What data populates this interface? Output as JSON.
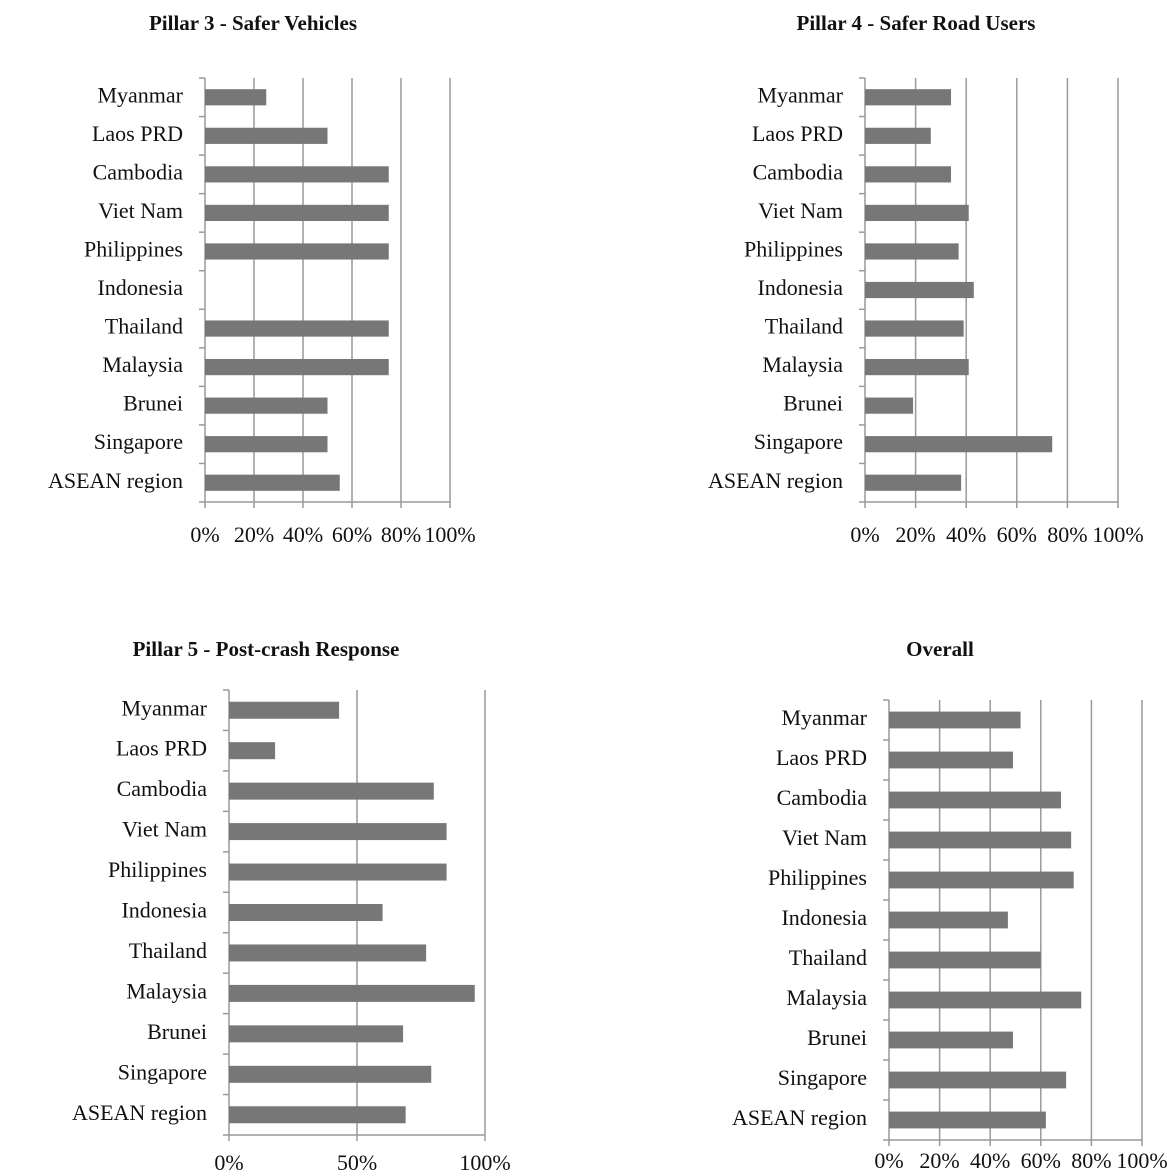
{
  "chart_data": [
    {
      "type": "bar",
      "orientation": "horizontal",
      "title": "Pillar 3 - Safer Vehicles",
      "categories": [
        "Myanmar",
        "Laos PRD",
        "Cambodia",
        "Viet Nam",
        "Philippines",
        "Indonesia",
        "Thailand",
        "Malaysia",
        "Brunei",
        "Singapore",
        "ASEAN region"
      ],
      "values": [
        25,
        50,
        75,
        75,
        75,
        0,
        75,
        75,
        50,
        50,
        55
      ],
      "color": "#777777",
      "xlim": [
        0,
        100
      ],
      "xticks": [
        {
          "value": 0,
          "label": "0%"
        },
        {
          "value": 20,
          "label": "20%"
        },
        {
          "value": 40,
          "label": "40%"
        },
        {
          "value": 60,
          "label": "60%"
        },
        {
          "value": 80,
          "label": "80%"
        },
        {
          "value": 100,
          "label": "100%"
        }
      ],
      "grid": true
    },
    {
      "type": "bar",
      "orientation": "horizontal",
      "title": "Pillar 4 - Safer Road Users",
      "categories": [
        "Myanmar",
        "Laos PRD",
        "Cambodia",
        "Viet Nam",
        "Philippines",
        "Indonesia",
        "Thailand",
        "Malaysia",
        "Brunei",
        "Singapore",
        "ASEAN region"
      ],
      "values": [
        34,
        26,
        34,
        41,
        37,
        43,
        39,
        41,
        19,
        74,
        38
      ],
      "color": "#777777",
      "xlim": [
        0,
        100
      ],
      "xticks": [
        {
          "value": 0,
          "label": "0%"
        },
        {
          "value": 20,
          "label": "20%"
        },
        {
          "value": 40,
          "label": "40%"
        },
        {
          "value": 60,
          "label": "60%"
        },
        {
          "value": 80,
          "label": "80%"
        },
        {
          "value": 100,
          "label": "100%"
        }
      ],
      "grid": true
    },
    {
      "type": "bar",
      "orientation": "horizontal",
      "title": "Pillar 5 - Post-crash Response",
      "categories": [
        "Myanmar",
        "Laos PRD",
        "Cambodia",
        "Viet Nam",
        "Philippines",
        "Indonesia",
        "Thailand",
        "Malaysia",
        "Brunei",
        "Singapore",
        "ASEAN region"
      ],
      "values": [
        43,
        18,
        80,
        85,
        85,
        60,
        77,
        96,
        68,
        79,
        69
      ],
      "color": "#777777",
      "xlim": [
        0,
        100
      ],
      "xticks": [
        {
          "value": 0,
          "label": "0%"
        },
        {
          "value": 50,
          "label": "50%"
        },
        {
          "value": 100,
          "label": "100%"
        }
      ],
      "grid": true
    },
    {
      "type": "bar",
      "orientation": "horizontal",
      "title": "Overall",
      "categories": [
        "Myanmar",
        "Laos PRD",
        "Cambodia",
        "Viet Nam",
        "Philippines",
        "Indonesia",
        "Thailand",
        "Malaysia",
        "Brunei",
        "Singapore",
        "ASEAN region"
      ],
      "values": [
        52,
        49,
        68,
        72,
        73,
        47,
        60,
        76,
        49,
        70,
        62
      ],
      "color": "#777777",
      "xlim": [
        0,
        100
      ],
      "xticks": [
        {
          "value": 0,
          "label": "0%"
        },
        {
          "value": 20,
          "label": "20%"
        },
        {
          "value": 40,
          "label": "40%"
        },
        {
          "value": 60,
          "label": "60%"
        },
        {
          "value": 80,
          "label": "80%"
        },
        {
          "value": 100,
          "label": "100%"
        }
      ],
      "grid": true
    }
  ]
}
